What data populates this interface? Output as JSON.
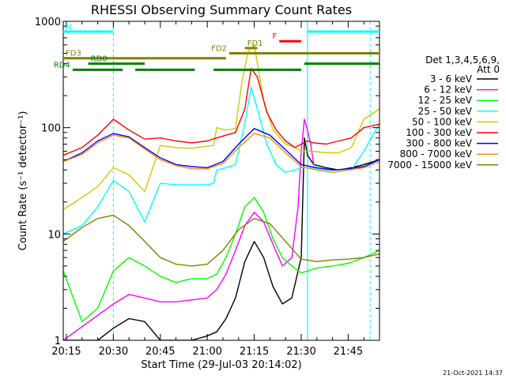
{
  "chart_data": {
    "type": "line",
    "title": "RHESSI Observing Summary Count Rates",
    "xlabel": "Start Time (29-Jul-03 20:14:02)",
    "ylabel": "Count Rate (s⁻¹ detector⁻¹)",
    "y_scale": "log",
    "xlim": [
      "20:14",
      "21:55"
    ],
    "ylim": [
      1,
      1000
    ],
    "x_ticks": [
      "20:15",
      "20:30",
      "20:45",
      "21:00",
      "21:15",
      "21:30",
      "21:45"
    ],
    "y_ticks": [
      "1",
      "10",
      "100",
      "1000"
    ],
    "footer": "21-Oct-2021 14:37",
    "legend": {
      "placement": "right",
      "header": [
        "Det 1,3,4,5,6,9,",
        "Att 0"
      ]
    },
    "series": [
      {
        "name": "3 - 6 keV",
        "color": "#000000",
        "x": [
          "20:14",
          "20:20",
          "20:25",
          "20:30",
          "20:35",
          "20:40",
          "20:45",
          "20:50",
          "20:55",
          "21:00",
          "21:03",
          "21:06",
          "21:09",
          "21:12",
          "21:15",
          "21:18",
          "21:21",
          "21:24",
          "21:27",
          "21:30",
          "21:31",
          "21:32",
          "21:34",
          "21:38",
          "21:42",
          "21:46",
          "21:50",
          "21:55"
        ],
        "y": [
          1,
          1,
          1,
          1.3,
          1.6,
          1.5,
          1,
          1,
          1,
          1.1,
          1.2,
          1.6,
          2.5,
          5.5,
          8.5,
          6,
          3.2,
          2.2,
          2.5,
          6,
          80,
          55,
          45,
          42,
          40,
          42,
          45,
          50
        ]
      },
      {
        "name": "6 - 12 keV",
        "color": "#ff00ff",
        "x": [
          "20:14",
          "20:30",
          "20:35",
          "20:40",
          "20:45",
          "20:50",
          "20:55",
          "21:00",
          "21:03",
          "21:06",
          "21:09",
          "21:12",
          "21:15",
          "21:18",
          "21:21",
          "21:24",
          "21:27",
          "21:29",
          "21:30",
          "21:31",
          "21:32",
          "21:33",
          "21:34"
        ],
        "y": [
          1,
          2.2,
          2.7,
          2.5,
          2.3,
          2.3,
          2.4,
          2.5,
          3,
          4.2,
          7,
          12,
          16,
          13,
          8,
          5,
          6,
          18,
          60,
          120,
          95,
          70,
          45
        ]
      },
      {
        "name": "12 - 25 keV",
        "color": "#00ff00",
        "x": [
          "20:14",
          "20:20",
          "20:25",
          "20:30",
          "20:35",
          "20:40",
          "20:45",
          "20:50",
          "20:55",
          "21:00",
          "21:03",
          "21:06",
          "21:09",
          "21:12",
          "21:15",
          "21:18",
          "21:21",
          "21:24",
          "21:27",
          "21:30",
          "21:35",
          "21:40",
          "21:45",
          "21:50",
          "21:55"
        ],
        "y": [
          4.5,
          1.5,
          2,
          4.5,
          6,
          5,
          4,
          3.5,
          3.8,
          3.8,
          4.2,
          6,
          10,
          18,
          22,
          16,
          9,
          6,
          5,
          4.3,
          4.8,
          5,
          5.3,
          6,
          7
        ]
      },
      {
        "name": "25 - 50 keV",
        "color": "#00ffff",
        "x": [
          "20:14",
          "20:20",
          "20:25",
          "20:30",
          "20:35",
          "20:40",
          "20:45",
          "20:50",
          "20:55",
          "21:00",
          "21:02",
          "21:03",
          "21:06",
          "21:09",
          "21:12",
          "21:14",
          "21:16",
          "21:19",
          "21:22",
          "21:25",
          "21:28",
          "21:30",
          "21:33",
          "21:38",
          "21:42",
          "21:46",
          "21:50",
          "21:55"
        ],
        "y": [
          10,
          12,
          18,
          32,
          25,
          13,
          30,
          29,
          29,
          29,
          30,
          40,
          42,
          45,
          110,
          240,
          150,
          70,
          45,
          38,
          40,
          42,
          42,
          40,
          40,
          40,
          60,
          110
        ]
      },
      {
        "name": "50 - 100 keV",
        "color": "#cccc00",
        "x": [
          "20:14",
          "20:20",
          "20:25",
          "20:30",
          "20:35",
          "20:40",
          "20:45",
          "20:50",
          "20:55",
          "21:00",
          "21:02",
          "21:03",
          "21:06",
          "21:09",
          "21:11",
          "21:13",
          "21:15",
          "21:18",
          "21:21",
          "21:25",
          "21:28",
          "21:30",
          "21:33",
          "21:38",
          "21:42",
          "21:46",
          "21:50",
          "21:55"
        ],
        "y": [
          17,
          22,
          28,
          42,
          36,
          25,
          68,
          65,
          64,
          67,
          68,
          100,
          95,
          98,
          260,
          520,
          600,
          180,
          95,
          70,
          65,
          60,
          60,
          58,
          58,
          65,
          120,
          150
        ]
      },
      {
        "name": "100 - 300 keV",
        "color": "#ff0000",
        "x": [
          "20:14",
          "20:20",
          "20:25",
          "20:30",
          "20:35",
          "20:40",
          "20:45",
          "20:50",
          "20:55",
          "21:00",
          "21:03",
          "21:06",
          "21:09",
          "21:12",
          "21:14",
          "21:16",
          "21:19",
          "21:22",
          "21:25",
          "21:28",
          "21:30",
          "21:32",
          "21:34",
          "21:38",
          "21:42",
          "21:46",
          "21:50",
          "21:55"
        ],
        "y": [
          55,
          65,
          85,
          120,
          95,
          78,
          80,
          75,
          72,
          75,
          80,
          85,
          90,
          150,
          360,
          300,
          140,
          95,
          75,
          65,
          70,
          75,
          72,
          70,
          75,
          80,
          100,
          108
        ]
      },
      {
        "name": "300 - 800 keV",
        "color": "#0000ff",
        "x": [
          "20:14",
          "20:20",
          "20:25",
          "20:30",
          "20:35",
          "20:40",
          "20:45",
          "20:50",
          "20:55",
          "21:00",
          "21:05",
          "21:10",
          "21:15",
          "21:20",
          "21:25",
          "21:30",
          "21:35",
          "21:40",
          "21:45",
          "21:50",
          "21:55"
        ],
        "y": [
          48,
          58,
          75,
          88,
          82,
          65,
          52,
          45,
          43,
          42,
          48,
          70,
          98,
          85,
          62,
          45,
          42,
          40,
          41,
          43,
          50
        ]
      },
      {
        "name": "800 - 7000 keV",
        "color": "#ff8c00",
        "x": [
          "20:14",
          "20:20",
          "20:25",
          "20:30",
          "20:35",
          "20:40",
          "20:45",
          "20:50",
          "20:55",
          "21:00",
          "21:05",
          "21:10",
          "21:15",
          "21:20",
          "21:25",
          "21:30",
          "21:35",
          "21:40",
          "21:45",
          "21:50",
          "21:55"
        ],
        "y": [
          48,
          56,
          72,
          85,
          80,
          63,
          50,
          44,
          41,
          41,
          46,
          65,
          88,
          80,
          58,
          43,
          40,
          38,
          40,
          42,
          48
        ]
      },
      {
        "name": "7000 - 15000 keV",
        "color": "#808000",
        "x": [
          "20:14",
          "20:20",
          "20:25",
          "20:30",
          "20:35",
          "20:40",
          "20:45",
          "20:50",
          "20:55",
          "21:00",
          "21:05",
          "21:10",
          "21:15",
          "21:20",
          "21:25",
          "21:30",
          "21:35",
          "21:40",
          "21:45",
          "21:50",
          "21:55"
        ],
        "y": [
          8.5,
          11.5,
          14,
          15,
          12,
          8.5,
          6,
          5.2,
          5,
          5.2,
          7,
          11,
          14,
          12.5,
          8.5,
          5.8,
          5.5,
          5.7,
          5.8,
          6,
          6.5
        ]
      }
    ],
    "flag_bars": [
      {
        "label": "N",
        "color": "#00ffff",
        "y": 800,
        "segments": [
          [
            "20:14",
            "20:30"
          ],
          [
            "21:32",
            "21:55"
          ]
        ]
      },
      {
        "label": "F",
        "color": "#ff0000",
        "y": 650,
        "segments": [
          [
            "21:23",
            "21:30"
          ]
        ]
      },
      {
        "label": "FD1",
        "color": "#808000",
        "y": 560,
        "segments": [
          [
            "21:12",
            "21:16"
          ]
        ]
      },
      {
        "label": "FD2",
        "color": "#808000",
        "y": 500,
        "segments": [
          [
            "21:07",
            "21:55"
          ]
        ]
      },
      {
        "label": "FD3",
        "color": "#808000",
        "y": 450,
        "segments": [
          [
            "20:14",
            "21:06"
          ]
        ]
      },
      {
        "label": "RD0",
        "color": "#008000",
        "y": 400,
        "segments": [
          [
            "20:22",
            "20:40"
          ],
          [
            "21:31",
            "21:55"
          ]
        ]
      },
      {
        "label": "RD4",
        "color": "#008000",
        "y": 350,
        "segments": [
          [
            "20:17",
            "20:33"
          ],
          [
            "20:37",
            "20:56"
          ],
          [
            "21:02",
            "21:30"
          ]
        ]
      }
    ],
    "night_boundaries": {
      "color": "#00ffff",
      "solid": [
        "20:14",
        "21:32"
      ],
      "dashed": [
        "20:30",
        "21:52"
      ]
    }
  }
}
